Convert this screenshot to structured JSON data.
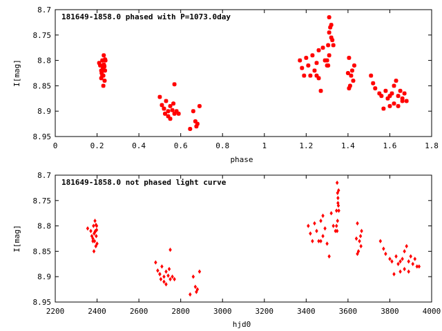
{
  "chart_data": [
    {
      "type": "scatter",
      "title": "181649-1858.0 phased with P=1073.0day",
      "xlabel": "phase",
      "ylabel": "I[mag]",
      "xlim": [
        0,
        1.8
      ],
      "ylim": [
        8.95,
        8.7
      ],
      "y_inverted": true,
      "xticks": [
        "0",
        "0.2",
        "0.4",
        "0.6",
        "0.8",
        "1",
        "1.2",
        "1.4",
        "1.6",
        "1.8"
      ],
      "yticks": [
        "8.7",
        "8.75",
        "8.8",
        "8.85",
        "8.9",
        "8.95"
      ],
      "marker": "star",
      "color": "#ff0000",
      "series": [
        {
          "x": [
            0.21,
            0.215,
            0.22,
            0.222,
            0.225,
            0.228,
            0.23,
            0.232,
            0.234,
            0.236,
            0.238,
            0.24,
            0.22,
            0.225,
            0.23,
            0.235,
            0.238,
            0.232,
            0.5,
            0.51,
            0.52,
            0.525,
            0.53,
            0.54,
            0.55,
            0.56,
            0.565,
            0.57,
            0.58,
            0.59,
            0.54,
            0.55,
            0.52,
            0.57,
            0.645,
            0.66,
            0.67,
            0.68,
            0.69,
            0.675,
            1.17,
            1.18,
            1.19,
            1.2,
            1.21,
            1.22,
            1.23,
            1.24,
            1.25,
            1.26,
            1.27,
            1.28,
            1.29,
            1.3,
            1.305,
            1.31,
            1.315,
            1.32,
            1.325,
            1.33,
            1.3,
            1.31,
            1.305,
            1.31,
            1.32,
            1.25,
            1.26,
            1.4,
            1.405,
            1.41,
            1.42,
            1.43,
            1.405,
            1.415,
            1.425,
            1.51,
            1.52,
            1.53,
            1.55,
            1.56,
            1.57,
            1.58,
            1.59,
            1.6,
            1.61,
            1.62,
            1.63,
            1.64,
            1.65,
            1.66,
            1.67,
            1.68,
            1.6,
            1.62,
            1.64,
            1.66
          ],
          "y": [
            8.805,
            8.81,
            8.82,
            8.825,
            8.8,
            8.815,
            8.83,
            8.79,
            8.81,
            8.84,
            8.82,
            8.8,
            8.835,
            8.83,
            8.85,
            8.812,
            8.798,
            8.808,
            8.872,
            8.888,
            8.895,
            8.905,
            8.88,
            8.9,
            8.89,
            8.898,
            8.885,
            8.847,
            8.9,
            8.905,
            8.91,
            8.915,
            8.895,
            8.905,
            8.935,
            8.9,
            8.92,
            8.925,
            8.89,
            8.93,
            8.8,
            8.815,
            8.83,
            8.795,
            8.81,
            8.83,
            8.79,
            8.82,
            8.805,
            8.835,
            8.86,
            8.775,
            8.8,
            8.81,
            8.77,
            8.715,
            8.735,
            8.755,
            8.76,
            8.77,
            8.8,
            8.79,
            8.81,
            8.745,
            8.73,
            8.83,
            8.78,
            8.825,
            8.795,
            8.85,
            8.82,
            8.81,
            8.855,
            8.83,
            8.84,
            8.83,
            8.845,
            8.855,
            8.865,
            8.87,
            8.895,
            8.86,
            8.875,
            8.87,
            8.865,
            8.885,
            8.84,
            8.89,
            8.86,
            8.875,
            8.865,
            8.88,
            8.89,
            8.85,
            8.87,
            8.88
          ]
        }
      ]
    },
    {
      "type": "scatter",
      "title": "181649-1858.0 not phased light curve",
      "xlabel": "hjd0",
      "ylabel": "I[mag]",
      "xlim": [
        2200,
        4000
      ],
      "ylim": [
        8.95,
        8.7
      ],
      "y_inverted": true,
      "xticks": [
        "2200",
        "2400",
        "2600",
        "2800",
        "3000",
        "3200",
        "3400",
        "3600",
        "3800",
        "4000"
      ],
      "yticks": [
        "8.7",
        "8.75",
        "8.8",
        "8.85",
        "8.9",
        "8.95"
      ],
      "marker": "diamond",
      "color": "#ff0000",
      "series": [
        {
          "x": [
            2355,
            2370,
            2375,
            2380,
            2383,
            2386,
            2388,
            2390,
            2392,
            2394,
            2396,
            2398,
            2400,
            2380,
            2385,
            2390,
            2395,
            2398,
            2680,
            2690,
            2700,
            2705,
            2710,
            2720,
            2730,
            2740,
            2745,
            2750,
            2760,
            2770,
            2720,
            2730,
            2700,
            2750,
            2845,
            2860,
            2870,
            2880,
            2890,
            2875,
            3410,
            3420,
            3430,
            3440,
            3450,
            3460,
            3470,
            3480,
            3490,
            3500,
            3510,
            3520,
            3530,
            3540,
            3545,
            3548,
            3550,
            3552,
            3554,
            3556,
            3545,
            3550,
            3548,
            3552,
            3555,
            3470,
            3480,
            3640,
            3645,
            3650,
            3660,
            3665,
            3645,
            3655,
            3662,
            3755,
            3770,
            3780,
            3800,
            3810,
            3820,
            3830,
            3840,
            3850,
            3860,
            3870,
            3880,
            3890,
            3900,
            3910,
            3920,
            3930,
            3850,
            3870,
            3890,
            3940
          ],
          "y": [
            8.805,
            8.81,
            8.82,
            8.825,
            8.8,
            8.815,
            8.83,
            8.79,
            8.81,
            8.84,
            8.82,
            8.8,
            8.835,
            8.83,
            8.85,
            8.812,
            8.798,
            8.808,
            8.872,
            8.888,
            8.895,
            8.905,
            8.88,
            8.9,
            8.89,
            8.898,
            8.885,
            8.847,
            8.9,
            8.905,
            8.91,
            8.915,
            8.895,
            8.905,
            8.935,
            8.9,
            8.92,
            8.925,
            8.89,
            8.93,
            8.8,
            8.815,
            8.83,
            8.795,
            8.81,
            8.83,
            8.79,
            8.82,
            8.805,
            8.835,
            8.86,
            8.775,
            8.8,
            8.81,
            8.77,
            8.715,
            8.735,
            8.755,
            8.76,
            8.77,
            8.8,
            8.79,
            8.81,
            8.745,
            8.73,
            8.83,
            8.78,
            8.825,
            8.795,
            8.85,
            8.82,
            8.81,
            8.855,
            8.83,
            8.84,
            8.83,
            8.845,
            8.855,
            8.865,
            8.87,
            8.895,
            8.86,
            8.875,
            8.87,
            8.865,
            8.885,
            8.84,
            8.89,
            8.86,
            8.875,
            8.865,
            8.88,
            8.89,
            8.85,
            8.87,
            8.88
          ]
        }
      ]
    }
  ]
}
